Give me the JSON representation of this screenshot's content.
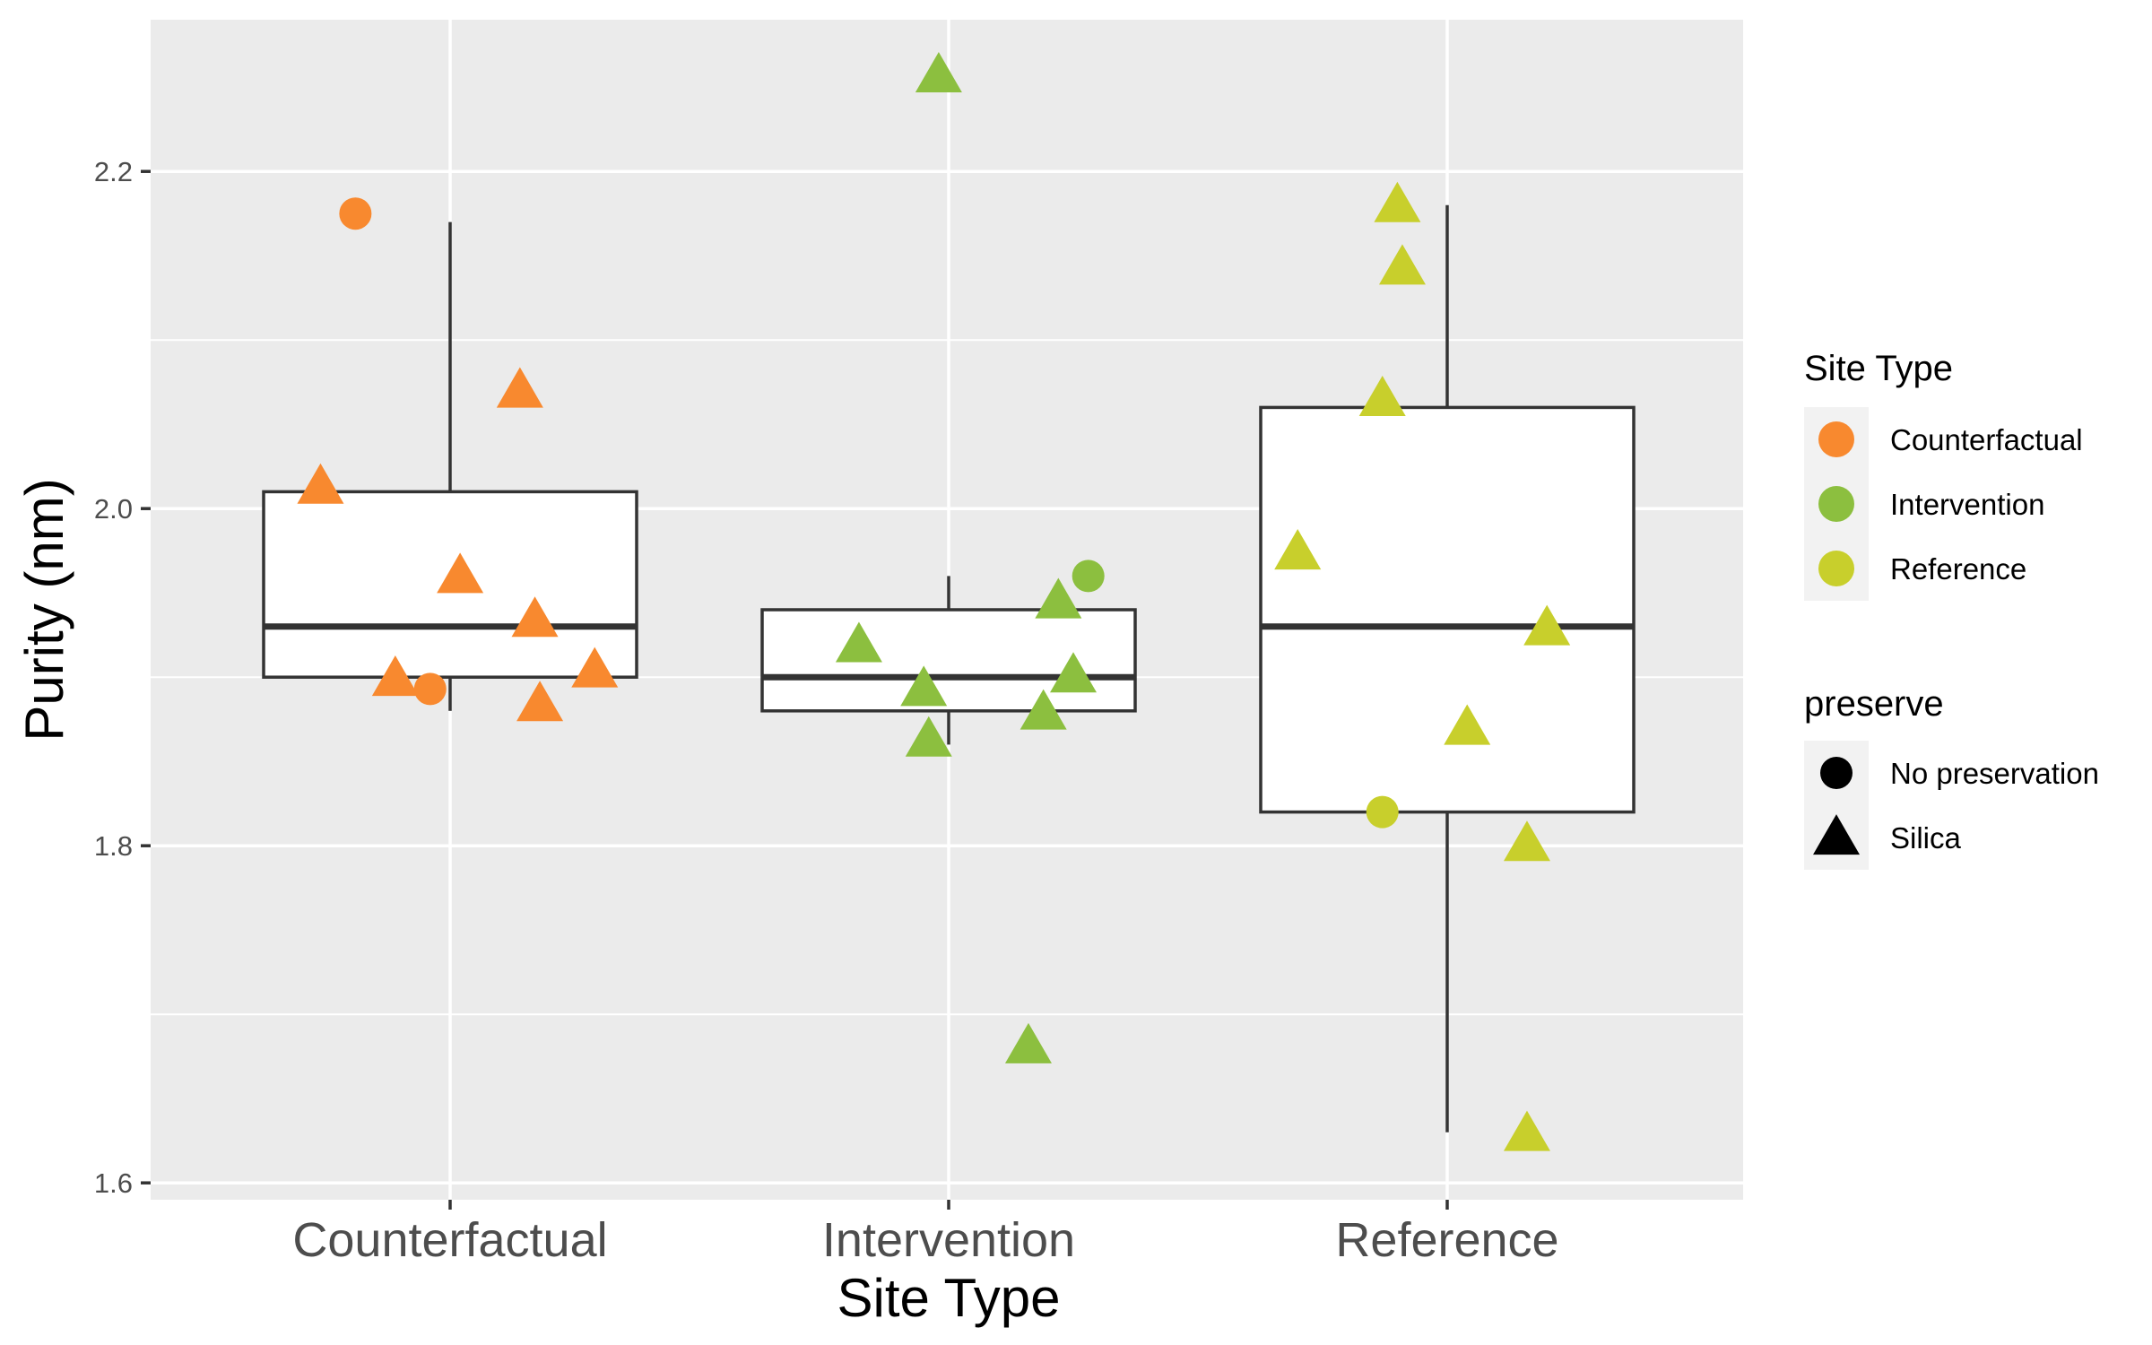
{
  "chart_data": {
    "type": "boxplot",
    "xlabel": "Site Type",
    "ylabel": "Purity (nm)",
    "categories": [
      "Counterfactual",
      "Intervention",
      "Reference"
    ],
    "ylim": [
      1.59,
      2.29
    ],
    "yticks": [
      1.6,
      1.8,
      2.0,
      2.2
    ],
    "ytick_labels": [
      "1.6",
      "1.8",
      "2.0",
      "2.2"
    ],
    "grid": true,
    "legend_position": "right",
    "colors": {
      "Counterfactual": "#F8892F",
      "Intervention": "#8CBF3F",
      "Reference": "#C8CF2C",
      "panel_background": "#EBEBEB",
      "grid": "#FFFFFF"
    },
    "boxes": [
      {
        "category": "Counterfactual",
        "whisker_low": 1.88,
        "q1": 1.9,
        "median": 1.93,
        "q3": 2.01,
        "whisker_high": 2.17
      },
      {
        "category": "Intervention",
        "whisker_low": 1.86,
        "q1": 1.88,
        "median": 1.9,
        "q3": 1.94,
        "whisker_high": 1.96
      },
      {
        "category": "Reference",
        "whisker_low": 1.63,
        "q1": 1.82,
        "median": 1.93,
        "q3": 2.06,
        "whisker_high": 2.18
      }
    ],
    "points": [
      {
        "category": "Counterfactual",
        "jitter": -0.19,
        "y": 2.175,
        "preserve": "No preservation"
      },
      {
        "category": "Counterfactual",
        "jitter": -0.26,
        "y": 2.012,
        "preserve": "Silica"
      },
      {
        "category": "Counterfactual",
        "jitter": 0.14,
        "y": 2.069,
        "preserve": "Silica"
      },
      {
        "category": "Counterfactual",
        "jitter": 0.02,
        "y": 1.959,
        "preserve": "Silica"
      },
      {
        "category": "Counterfactual",
        "jitter": 0.17,
        "y": 1.933,
        "preserve": "Silica"
      },
      {
        "category": "Counterfactual",
        "jitter": -0.11,
        "y": 1.898,
        "preserve": "Silica"
      },
      {
        "category": "Counterfactual",
        "jitter": -0.04,
        "y": 1.893,
        "preserve": "No preservation"
      },
      {
        "category": "Counterfactual",
        "jitter": 0.18,
        "y": 1.883,
        "preserve": "Silica"
      },
      {
        "category": "Counterfactual",
        "jitter": 0.29,
        "y": 1.903,
        "preserve": "Silica"
      },
      {
        "category": "Intervention",
        "jitter": -0.02,
        "y": 2.256,
        "preserve": "Silica"
      },
      {
        "category": "Intervention",
        "jitter": 0.28,
        "y": 1.96,
        "preserve": "No preservation"
      },
      {
        "category": "Intervention",
        "jitter": 0.22,
        "y": 1.944,
        "preserve": "Silica"
      },
      {
        "category": "Intervention",
        "jitter": -0.18,
        "y": 1.918,
        "preserve": "Silica"
      },
      {
        "category": "Intervention",
        "jitter": -0.05,
        "y": 1.892,
        "preserve": "Silica"
      },
      {
        "category": "Intervention",
        "jitter": 0.25,
        "y": 1.9,
        "preserve": "Silica"
      },
      {
        "category": "Intervention",
        "jitter": 0.19,
        "y": 1.878,
        "preserve": "Silica"
      },
      {
        "category": "Intervention",
        "jitter": -0.04,
        "y": 1.862,
        "preserve": "Silica"
      },
      {
        "category": "Intervention",
        "jitter": 0.16,
        "y": 1.68,
        "preserve": "Silica"
      },
      {
        "category": "Reference",
        "jitter": -0.1,
        "y": 2.179,
        "preserve": "Silica"
      },
      {
        "category": "Reference",
        "jitter": -0.09,
        "y": 2.142,
        "preserve": "Silica"
      },
      {
        "category": "Reference",
        "jitter": -0.13,
        "y": 2.064,
        "preserve": "Silica"
      },
      {
        "category": "Reference",
        "jitter": -0.3,
        "y": 1.973,
        "preserve": "Silica"
      },
      {
        "category": "Reference",
        "jitter": 0.2,
        "y": 1.928,
        "preserve": "Silica"
      },
      {
        "category": "Reference",
        "jitter": 0.04,
        "y": 1.869,
        "preserve": "Silica"
      },
      {
        "category": "Reference",
        "jitter": -0.13,
        "y": 1.82,
        "preserve": "No preservation"
      },
      {
        "category": "Reference",
        "jitter": 0.16,
        "y": 1.8,
        "preserve": "Silica"
      },
      {
        "category": "Reference",
        "jitter": 0.16,
        "y": 1.628,
        "preserve": "Silica"
      }
    ],
    "legend": {
      "color_title": "Site Type",
      "color_items": [
        {
          "label": "Counterfactual",
          "color": "#F8892F"
        },
        {
          "label": "Intervention",
          "color": "#8CBF3F"
        },
        {
          "label": "Reference",
          "color": "#C8CF2C"
        }
      ],
      "shape_title": "preserve",
      "shape_items": [
        {
          "label": "No preservation",
          "shape": "circle"
        },
        {
          "label": "Silica",
          "shape": "triangle"
        }
      ]
    }
  }
}
